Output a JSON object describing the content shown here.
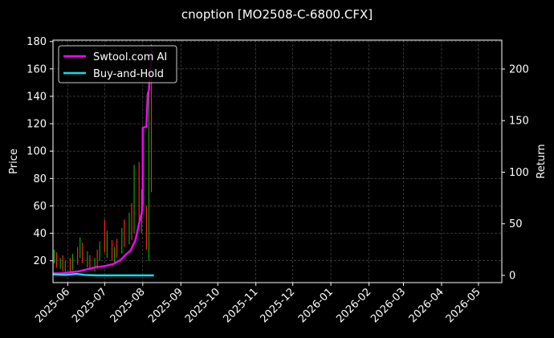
{
  "chart_data": {
    "type": "line",
    "title": "cnoption [MO2508-C-6800.CFX]",
    "xlabel": "",
    "ylabel": "Price",
    "y2label": "Return",
    "grid": true,
    "background": "#000000",
    "legend": {
      "placement": "top-left"
    },
    "x_ticks": [
      "2025-06",
      "2025-07",
      "2025-08",
      "2025-09",
      "2025-10",
      "2025-11",
      "2025-12",
      "2026-01",
      "2026-02",
      "2026-03",
      "2026-04",
      "2026-05"
    ],
    "x_range": [
      "2025-05-20",
      "2026-05-20"
    ],
    "y_left": {
      "range": [
        4,
        181
      ],
      "ticks": [
        20,
        40,
        60,
        80,
        100,
        120,
        140,
        160,
        180
      ]
    },
    "y_right": {
      "range": [
        -7,
        228
      ],
      "ticks": [
        0,
        50,
        100,
        150,
        200
      ]
    },
    "candles": {
      "up_color": "#00aa00",
      "down_color": "#ff2020",
      "points": [
        {
          "date": "2025-05-21",
          "high": 28,
          "low": 18
        },
        {
          "date": "2025-05-23",
          "high": 26,
          "low": 15
        },
        {
          "date": "2025-05-26",
          "high": 22,
          "low": 14
        },
        {
          "date": "2025-05-28",
          "high": 24,
          "low": 12
        },
        {
          "date": "2025-05-30",
          "high": 20,
          "low": 11
        },
        {
          "date": "2025-06-03",
          "high": 22,
          "low": 12
        },
        {
          "date": "2025-06-05",
          "high": 25,
          "low": 13
        },
        {
          "date": "2025-06-09",
          "high": 30,
          "low": 17
        },
        {
          "date": "2025-06-11",
          "high": 37,
          "low": 22
        },
        {
          "date": "2025-06-13",
          "high": 33,
          "low": 18
        },
        {
          "date": "2025-06-17",
          "high": 27,
          "low": 15
        },
        {
          "date": "2025-06-19",
          "high": 24,
          "low": 13
        },
        {
          "date": "2025-06-23",
          "high": 22,
          "low": 12
        },
        {
          "date": "2025-06-25",
          "high": 28,
          "low": 14
        },
        {
          "date": "2025-06-27",
          "high": 34,
          "low": 20
        },
        {
          "date": "2025-07-01",
          "high": 50,
          "low": 26
        },
        {
          "date": "2025-07-03",
          "high": 42,
          "low": 22
        },
        {
          "date": "2025-07-07",
          "high": 35,
          "low": 20
        },
        {
          "date": "2025-07-09",
          "high": 30,
          "low": 18
        },
        {
          "date": "2025-07-11",
          "high": 36,
          "low": 22
        },
        {
          "date": "2025-07-15",
          "high": 44,
          "low": 25
        },
        {
          "date": "2025-07-17",
          "high": 50,
          "low": 30
        },
        {
          "date": "2025-07-21",
          "high": 55,
          "low": 32
        },
        {
          "date": "2025-07-23",
          "high": 62,
          "low": 35
        },
        {
          "date": "2025-07-25",
          "high": 90,
          "low": 40
        },
        {
          "date": "2025-07-29",
          "high": 92,
          "low": 45
        },
        {
          "date": "2025-07-31",
          "high": 72,
          "low": 40
        },
        {
          "date": "2025-08-04",
          "high": 60,
          "low": 28
        },
        {
          "date": "2025-08-06",
          "high": 160,
          "low": 20
        },
        {
          "date": "2025-08-08",
          "high": 178,
          "low": 70
        }
      ]
    },
    "series": [
      {
        "name": "Swtool.com AI",
        "color": "#ff00ff",
        "axis": "right",
        "points": [
          {
            "x": "2025-05-20",
            "y": 2
          },
          {
            "x": "2025-05-28",
            "y": 2
          },
          {
            "x": "2025-06-03",
            "y": 3
          },
          {
            "x": "2025-06-10",
            "y": 4
          },
          {
            "x": "2025-06-17",
            "y": 6
          },
          {
            "x": "2025-06-24",
            "y": 8
          },
          {
            "x": "2025-07-01",
            "y": 9
          },
          {
            "x": "2025-07-08",
            "y": 11
          },
          {
            "x": "2025-07-14",
            "y": 15
          },
          {
            "x": "2025-07-18",
            "y": 20
          },
          {
            "x": "2025-07-22",
            "y": 24
          },
          {
            "x": "2025-07-26",
            "y": 34
          },
          {
            "x": "2025-07-29",
            "y": 50
          },
          {
            "x": "2025-07-31",
            "y": 60
          },
          {
            "x": "2025-08-01",
            "y": 70
          },
          {
            "x": "2025-08-01",
            "y": 143
          },
          {
            "x": "2025-08-04",
            "y": 144
          },
          {
            "x": "2025-08-05",
            "y": 175
          },
          {
            "x": "2025-08-06",
            "y": 180
          },
          {
            "x": "2025-08-07",
            "y": 200
          },
          {
            "x": "2025-08-09",
            "y": 218
          }
        ]
      },
      {
        "name": "Buy-and-Hold",
        "color": "#00e5ee",
        "axis": "right",
        "points": [
          {
            "x": "2025-05-20",
            "y": 1
          },
          {
            "x": "2025-05-30",
            "y": 0.5
          },
          {
            "x": "2025-06-08",
            "y": 1.5
          },
          {
            "x": "2025-06-15",
            "y": 0.5
          },
          {
            "x": "2025-06-25",
            "y": 0
          },
          {
            "x": "2025-07-05",
            "y": 0
          },
          {
            "x": "2025-07-15",
            "y": 0
          },
          {
            "x": "2025-07-25",
            "y": 0
          },
          {
            "x": "2025-08-01",
            "y": 0
          },
          {
            "x": "2025-08-10",
            "y": 0
          }
        ]
      }
    ]
  }
}
